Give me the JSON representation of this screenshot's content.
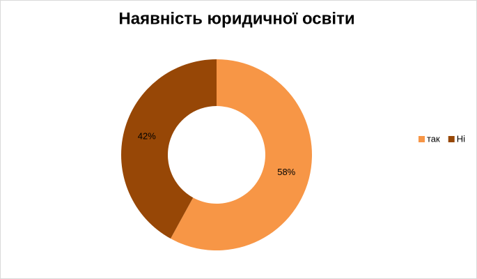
{
  "chart_data": {
    "type": "donut",
    "title": "Наявність юридичної освіти",
    "categories": [
      "так",
      "Ні"
    ],
    "values": [
      58,
      42
    ],
    "value_labels": [
      "58%",
      "42%"
    ],
    "colors": [
      "#f79646",
      "#974706"
    ],
    "legend": "right"
  }
}
